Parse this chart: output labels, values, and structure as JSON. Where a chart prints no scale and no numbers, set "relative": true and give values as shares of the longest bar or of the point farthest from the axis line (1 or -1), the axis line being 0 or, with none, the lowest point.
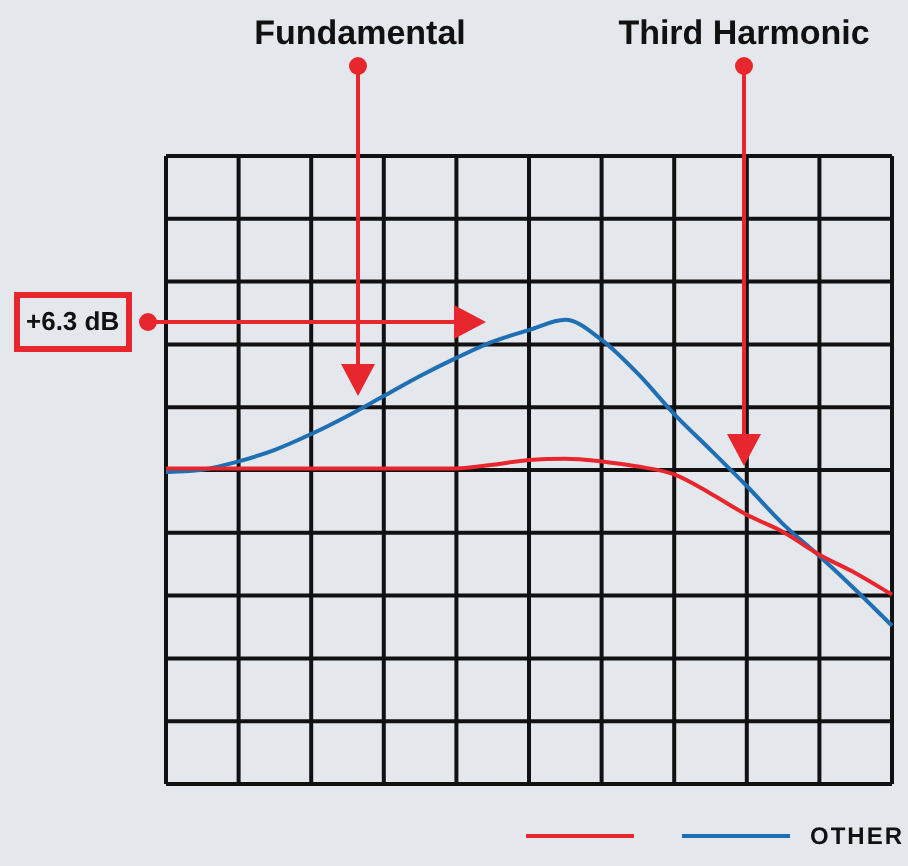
{
  "chart_data": {
    "type": "line",
    "relative": true,
    "grid": true,
    "legend": "bottom right",
    "marker": "none",
    "line_style": "solid",
    "categories": [
      null,
      null,
      null,
      null,
      null,
      null,
      null,
      null,
      null,
      null,
      null,
      null,
      null,
      null,
      null,
      null,
      null,
      null,
      null,
      null,
      null
    ],
    "series": [
      {
        "color": "#e8262e",
        "values": [
          0.68,
          0.68,
          0.68,
          0.68,
          0.68,
          0.68,
          0.68,
          0.68,
          0.68,
          0.688,
          0.698,
          0.701,
          0.695,
          0.684,
          0.667,
          0.626,
          0.58,
          0.543,
          0.494,
          0.454,
          0.408
        ]
      },
      {
        "name": "OTHER",
        "color": "#1f6fb5",
        "values": [
          0.672,
          0.677,
          0.695,
          0.72,
          0.754,
          0.793,
          0.836,
          0.879,
          0.918,
          0.953,
          0.978,
          1,
          0.957,
          0.884,
          0.797,
          0.72,
          0.642,
          0.56,
          0.491,
          0.418,
          0.341
        ]
      }
    ],
    "annotations": [
      "Fundamental",
      "Third Harmonic",
      "+6.3 dB"
    ]
  }
}
